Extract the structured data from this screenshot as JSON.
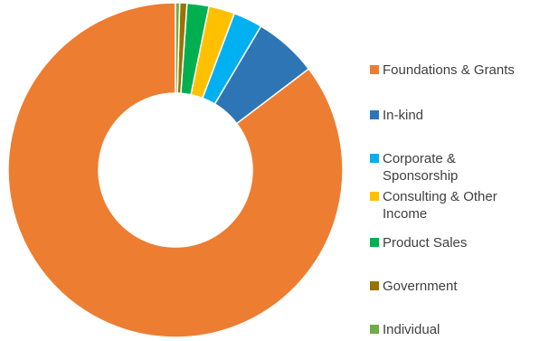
{
  "chart_data": {
    "type": "pie",
    "variant": "donut",
    "title": "",
    "legend_position": "right",
    "categories": [
      "Foundations & Grants",
      "In-kind",
      "Corporate & Sponsorship",
      "Consulting & Other Income",
      "Product Sales",
      "Government",
      "Individual"
    ],
    "values": [
      85.0,
      6.1,
      2.8,
      2.5,
      2.1,
      0.7,
      0.4
    ],
    "colors": [
      "#ED7D31",
      "#2E75B6",
      "#00B0F0",
      "#FFC000",
      "#00B050",
      "#997300",
      "#70AD47"
    ]
  }
}
